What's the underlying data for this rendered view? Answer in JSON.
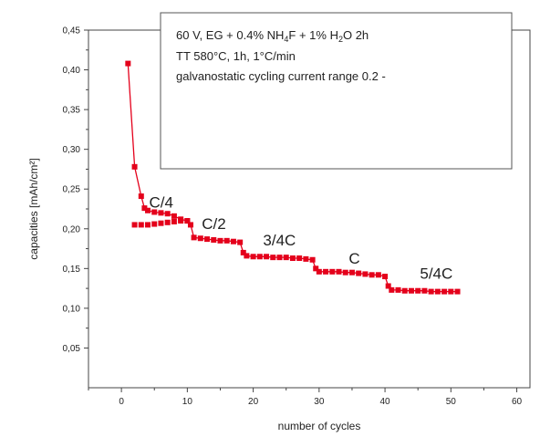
{
  "chart_data": {
    "type": "scatter",
    "title": "",
    "xlabel": "number of cycles",
    "ylabel": "capacities [mAh/cm²]",
    "xlim": [
      -5,
      62
    ],
    "ylim": [
      0.0,
      0.45
    ],
    "x_ticks": [
      0,
      10,
      20,
      30,
      40,
      50,
      60
    ],
    "y_ticks": [
      0.05,
      0.1,
      0.15,
      0.2,
      0.25,
      0.3,
      0.35,
      0.4,
      0.45
    ],
    "x_tick_labels": [
      "0",
      "10",
      "20",
      "30",
      "40",
      "50",
      "60"
    ],
    "y_tick_labels": [
      "0,05",
      "0,10",
      "0,15",
      "0,20",
      "0,25",
      "0,30",
      "0,35",
      "0,40",
      "0,45"
    ],
    "grid": false,
    "marker_color": "#e4001b",
    "series": [
      {
        "x": [
          1,
          2,
          3,
          3.5,
          4,
          5,
          6,
          7,
          8,
          9,
          10,
          10.5,
          11,
          12,
          13,
          14,
          15,
          16,
          17,
          18,
          18.5,
          19,
          20,
          21,
          22,
          23,
          24,
          25,
          26,
          27,
          28,
          29,
          29.5,
          30,
          31,
          32,
          33,
          34,
          35,
          36,
          37,
          38,
          39,
          40,
          40.5,
          41,
          42,
          43,
          44,
          45,
          46,
          47,
          48,
          49,
          50,
          51
        ],
        "y": [
          0.408,
          0.278,
          0.241,
          0.226,
          0.223,
          0.221,
          0.22,
          0.219,
          0.216,
          0.212,
          0.21,
          0.205,
          0.189,
          0.188,
          0.187,
          0.186,
          0.185,
          0.185,
          0.184,
          0.183,
          0.17,
          0.166,
          0.165,
          0.165,
          0.165,
          0.164,
          0.164,
          0.164,
          0.163,
          0.163,
          0.162,
          0.161,
          0.15,
          0.146,
          0.146,
          0.146,
          0.146,
          0.145,
          0.145,
          0.144,
          0.143,
          0.142,
          0.142,
          0.14,
          0.128,
          0.123,
          0.123,
          0.122,
          0.122,
          0.122,
          0.122,
          0.121,
          0.121,
          0.121,
          0.121,
          0.121
        ]
      },
      {
        "x": [
          2,
          3,
          4,
          5,
          6,
          7,
          8,
          9,
          10
        ],
        "y": [
          0.205,
          0.205,
          0.205,
          0.206,
          0.207,
          0.208,
          0.209,
          0.21,
          0.21
        ]
      }
    ],
    "annotations": [
      {
        "text": "C/4",
        "x": 4.2,
        "y": 0.227
      },
      {
        "text": "C/2",
        "x": 12.2,
        "y": 0.2
      },
      {
        "text": "3/4C",
        "x": 21.5,
        "y": 0.179
      },
      {
        "text": "C",
        "x": 34.5,
        "y": 0.156
      },
      {
        "text": "5/4C",
        "x": 45.3,
        "y": 0.137
      }
    ],
    "legend": {
      "placement": "top-right",
      "line1_parts": [
        {
          "text": "60 V, EG + 0.4% NH",
          "sub": false
        },
        {
          "text": "4",
          "sub": true
        },
        {
          "text": "F + 1% H",
          "sub": false
        },
        {
          "text": "2",
          "sub": true
        },
        {
          "text": "O   2h",
          "sub": false
        }
      ],
      "line2": "TT 580°C, 1h, 1°C/min",
      "line3": "galvanostatic cycling current range 0.2 -"
    }
  }
}
